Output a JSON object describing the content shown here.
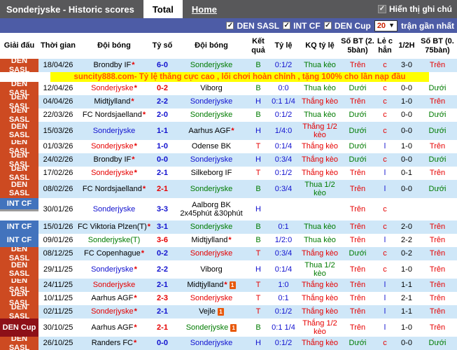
{
  "palette": {
    "bar_gray": "#58585a",
    "bar_blue": "#4d5ca6",
    "den_sasl": "#cd4a21",
    "int_cf": "#4273bd",
    "den_cup": "#8d1018",
    "row_alt": "#cfe7f8",
    "banner_bg": "#ffff00",
    "banner_text": "#ff5500",
    "win_red": "#e60000",
    "lose_green": "#007b00",
    "draw_blue": "#1111cf"
  },
  "tabs": {
    "title": "Sonderjyske - Historic scores",
    "total": "Total",
    "home": "Home",
    "note_toggle": "Hiển thị ghi chú"
  },
  "filters": {
    "leagues": [
      "DEN SASL",
      "INT CF",
      "DEN Cup"
    ],
    "count": "20",
    "suffix": "trận gần nhất"
  },
  "banner": {
    "text": "suncity888.com- Tỷ lệ thắng cực cao , lối chơi hoàn chỉnh , tặng 100% cho lần nạp đầu"
  },
  "columns": [
    "Giải đấu",
    "Thời gian",
    "Đội bóng",
    "Tỷ số",
    "Đội bóng",
    "Kết\nquả",
    "Tỷ lệ",
    "KQ tỷ lệ",
    "Số BT (2.\n5bàn)",
    "Lẻ c\nhẳn",
    "1/2H",
    "Số BT (0.\n75bàn)"
  ],
  "rows": [
    {
      "league": "DEN SASL",
      "lg": "sasl",
      "date": "18/04/26",
      "t1": "Brondby IF",
      "t1s": true,
      "t1c": "black",
      "score": "6-0",
      "scc": "blue",
      "t2": "Sonderjyske",
      "t2s": false,
      "t2c": "green",
      "t2i": false,
      "t2n": "",
      "res": "B",
      "resc": "green",
      "odds": "0:1/2",
      "kq": "Thua kèo",
      "kqc": "green",
      "o25": "Trên",
      "o25c": "red",
      "oe": "c",
      "oec": "red",
      "h12": "3-0",
      "o75": "Trên",
      "o75c": "red",
      "h": 1
    },
    {
      "league": "DEN SASL",
      "lg": "sasl",
      "date": "12/04/26",
      "t1": "Sonderjyske",
      "t1s": true,
      "t1c": "red",
      "score": "0-2",
      "scc": "red",
      "t2": "Viborg",
      "t2s": false,
      "t2c": "black",
      "t2i": false,
      "t2n": "",
      "res": "B",
      "resc": "green",
      "odds": "0:0",
      "kq": "Thua kèo",
      "kqc": "green",
      "o25": "Dưới",
      "o25c": "green",
      "oe": "c",
      "oec": "red",
      "h12": "0-0",
      "o75": "Dưới",
      "o75c": "green",
      "h": 1
    },
    {
      "league": "DEN SASL",
      "lg": "sasl",
      "date": "04/04/26",
      "t1": "Midtjylland",
      "t1s": true,
      "t1c": "black",
      "score": "2-2",
      "scc": "blue",
      "t2": "Sonderjyske",
      "t2s": false,
      "t2c": "blue",
      "t2i": false,
      "t2n": "",
      "res": "H",
      "resc": "blue",
      "odds": "0:1 1/4",
      "kq": "Thắng kèo",
      "kqc": "red",
      "o25": "Trên",
      "o25c": "red",
      "oe": "c",
      "oec": "red",
      "h12": "1-0",
      "o75": "Trên",
      "o75c": "red",
      "h": 1
    },
    {
      "league": "DEN SASL",
      "lg": "sasl",
      "date": "22/03/26",
      "t1": "FC Nordsjaelland",
      "t1s": true,
      "t1c": "black",
      "score": "2-0",
      "scc": "blue",
      "t2": "Sonderjyske",
      "t2s": false,
      "t2c": "green",
      "t2i": false,
      "t2n": "",
      "res": "B",
      "resc": "green",
      "odds": "0:1/2",
      "kq": "Thua kèo",
      "kqc": "green",
      "o25": "Dưới",
      "o25c": "green",
      "oe": "c",
      "oec": "red",
      "h12": "0-0",
      "o75": "Dưới",
      "o75c": "green",
      "h": 1
    },
    {
      "league": "DEN SASL",
      "lg": "sasl",
      "date": "15/03/26",
      "t1": "Sonderjyske",
      "t1s": false,
      "t1c": "blue",
      "score": "1-1",
      "scc": "blue",
      "t2": "Aarhus AGF",
      "t2s": true,
      "t2c": "black",
      "t2i": false,
      "t2n": "",
      "res": "H",
      "resc": "blue",
      "odds": "1/4:0",
      "kq": "Thắng 1/2 kèo",
      "kqc": "red",
      "o25": "Dưới",
      "o25c": "green",
      "oe": "c",
      "oec": "red",
      "h12": "0-0",
      "o75": "Dưới",
      "o75c": "green",
      "h": 2
    },
    {
      "league": "DEN SASL",
      "lg": "sasl",
      "date": "01/03/26",
      "t1": "Sonderjyske",
      "t1s": true,
      "t1c": "red",
      "score": "1-0",
      "scc": "blue",
      "t2": "Odense BK",
      "t2s": false,
      "t2c": "black",
      "t2i": false,
      "t2n": "",
      "res": "T",
      "resc": "red",
      "odds": "0:1/4",
      "kq": "Thắng kèo",
      "kqc": "red",
      "o25": "Dưới",
      "o25c": "green",
      "oe": "l",
      "oec": "blue",
      "h12": "1-0",
      "o75": "Trên",
      "o75c": "red",
      "h": 1
    },
    {
      "league": "DEN SASL",
      "lg": "sasl",
      "date": "24/02/26",
      "t1": "Brondby IF",
      "t1s": true,
      "t1c": "black",
      "score": "0-0",
      "scc": "blue",
      "t2": "Sonderjyske",
      "t2s": false,
      "t2c": "blue",
      "t2i": false,
      "t2n": "",
      "res": "H",
      "resc": "blue",
      "odds": "0:3/4",
      "kq": "Thắng kèo",
      "kqc": "red",
      "o25": "Dưới",
      "o25c": "green",
      "oe": "c",
      "oec": "red",
      "h12": "0-0",
      "o75": "Dưới",
      "o75c": "green",
      "h": 1
    },
    {
      "league": "DEN SASL",
      "lg": "sasl",
      "date": "17/02/26",
      "t1": "Sonderjyske",
      "t1s": true,
      "t1c": "red",
      "score": "2-1",
      "scc": "blue",
      "t2": "Silkeborg IF",
      "t2s": false,
      "t2c": "black",
      "t2i": false,
      "t2n": "",
      "res": "T",
      "resc": "red",
      "odds": "0:1/2",
      "kq": "Thắng kèo",
      "kqc": "red",
      "o25": "Trên",
      "o25c": "red",
      "oe": "l",
      "oec": "blue",
      "h12": "0-1",
      "o75": "Trên",
      "o75c": "red",
      "h": 1
    },
    {
      "league": "DEN SASL",
      "lg": "sasl",
      "date": "08/02/26",
      "t1": "FC Nordsjaelland",
      "t1s": true,
      "t1c": "black",
      "score": "2-1",
      "scc": "red",
      "t2": "Sonderjyske",
      "t2s": false,
      "t2c": "green",
      "t2i": false,
      "t2n": "",
      "res": "B",
      "resc": "green",
      "odds": "0:3/4",
      "kq": "Thua 1/2 kèo",
      "kqc": "green",
      "o25": "Trên",
      "o25c": "red",
      "oe": "l",
      "oec": "blue",
      "h12": "0-0",
      "o75": "Dưới",
      "o75c": "green",
      "h": 2
    },
    {
      "league": "INT CF",
      "lg": "intcf",
      "date": "30/01/26",
      "t1": "Sonderjyske",
      "t1s": false,
      "t1c": "blue",
      "score": "3-3",
      "scc": "blue",
      "t2": "Aalborg BK",
      "t2s": false,
      "t2c": "black",
      "t2i": false,
      "t2n": "2x45phút &30phút",
      "res": "H",
      "resc": "blue",
      "odds": "",
      "kq": "",
      "kqc": "black",
      "o25": "Trên",
      "o25c": "red",
      "oe": "c",
      "oec": "red",
      "h12": "",
      "o75": "",
      "o75c": "black",
      "h": 3
    },
    {
      "league": "INT CF",
      "lg": "intcf",
      "date": "15/01/26",
      "t1": "FC Viktoria Plzen(T)",
      "t1s": true,
      "t1c": "black",
      "score": "3-1",
      "scc": "blue",
      "t2": "Sonderjyske",
      "t2s": false,
      "t2c": "green",
      "t2i": false,
      "t2n": "",
      "res": "B",
      "resc": "green",
      "odds": "0:1",
      "kq": "Thua kèo",
      "kqc": "green",
      "o25": "Trên",
      "o25c": "red",
      "oe": "c",
      "oec": "red",
      "h12": "2-0",
      "o75": "Trên",
      "o75c": "red",
      "h": 1
    },
    {
      "league": "INT CF",
      "lg": "intcf",
      "date": "09/01/26",
      "t1": "Sonderjyske(T)",
      "t1s": false,
      "t1c": "green",
      "score": "3-6",
      "scc": "red",
      "t2": "Midtjylland",
      "t2s": true,
      "t2c": "black",
      "t2i": false,
      "t2n": "",
      "res": "B",
      "resc": "green",
      "odds": "1/2:0",
      "kq": "Thua kèo",
      "kqc": "green",
      "o25": "Trên",
      "o25c": "red",
      "oe": "l",
      "oec": "blue",
      "h12": "2-2",
      "o75": "Trên",
      "o75c": "red",
      "h": 1
    },
    {
      "league": "DEN SASL",
      "lg": "sasl",
      "date": "08/12/25",
      "t1": "FC Copenhague",
      "t1s": true,
      "t1c": "black",
      "score": "0-2",
      "scc": "blue",
      "t2": "Sonderjyske",
      "t2s": false,
      "t2c": "red",
      "t2i": false,
      "t2n": "",
      "res": "T",
      "resc": "red",
      "odds": "0:3/4",
      "kq": "Thắng kèo",
      "kqc": "red",
      "o25": "Dưới",
      "o25c": "green",
      "oe": "c",
      "oec": "red",
      "h12": "0-2",
      "o75": "Trên",
      "o75c": "red",
      "h": 1
    },
    {
      "league": "DEN SASL",
      "lg": "sasl",
      "date": "29/11/25",
      "t1": "Sonderjyske",
      "t1s": true,
      "t1c": "blue",
      "score": "2-2",
      "scc": "blue",
      "t2": "Viborg",
      "t2s": false,
      "t2c": "black",
      "t2i": false,
      "t2n": "",
      "res": "H",
      "resc": "blue",
      "odds": "0:1/4",
      "kq": "Thua 1/2 kèo",
      "kqc": "green",
      "o25": "Trên",
      "o25c": "red",
      "oe": "c",
      "oec": "red",
      "h12": "1-0",
      "o75": "Trên",
      "o75c": "red",
      "h": 2
    },
    {
      "league": "DEN SASL",
      "lg": "sasl",
      "date": "24/11/25",
      "t1": "Sonderjyske",
      "t1s": false,
      "t1c": "red",
      "score": "2-1",
      "scc": "blue",
      "t2": "Midtjylland",
      "t2s": true,
      "t2c": "black",
      "t2i": true,
      "t2n": "",
      "res": "T",
      "resc": "red",
      "odds": "1:0",
      "kq": "Thắng kèo",
      "kqc": "red",
      "o25": "Trên",
      "o25c": "red",
      "oe": "l",
      "oec": "blue",
      "h12": "1-1",
      "o75": "Trên",
      "o75c": "red",
      "h": 1
    },
    {
      "league": "DEN SASL",
      "lg": "sasl",
      "date": "10/11/25",
      "t1": "Aarhus AGF",
      "t1s": true,
      "t1c": "black",
      "score": "2-3",
      "scc": "red",
      "t2": "Sonderjyske",
      "t2s": false,
      "t2c": "red",
      "t2i": false,
      "t2n": "",
      "res": "T",
      "resc": "red",
      "odds": "0:1",
      "kq": "Thắng kèo",
      "kqc": "red",
      "o25": "Trên",
      "o25c": "red",
      "oe": "l",
      "oec": "blue",
      "h12": "2-1",
      "o75": "Trên",
      "o75c": "red",
      "h": 1
    },
    {
      "league": "DEN SASL",
      "lg": "sasl",
      "date": "02/11/25",
      "t1": "Sonderjyske",
      "t1s": true,
      "t1c": "red",
      "score": "2-1",
      "scc": "blue",
      "t2": "Vejle",
      "t2s": false,
      "t2c": "black",
      "t2i": true,
      "t2n": "",
      "res": "T",
      "resc": "red",
      "odds": "0:1/2",
      "kq": "Thắng kèo",
      "kqc": "red",
      "o25": "Trên",
      "o25c": "red",
      "oe": "l",
      "oec": "blue",
      "h12": "1-1",
      "o75": "Trên",
      "o75c": "red",
      "h": 1
    },
    {
      "league": "DEN Cup",
      "lg": "cup",
      "date": "30/10/25",
      "t1": "Aarhus AGF",
      "t1s": true,
      "t1c": "black",
      "score": "2-1",
      "scc": "red",
      "t2": "Sonderjyske",
      "t2s": false,
      "t2c": "green",
      "t2i": true,
      "t2n": "",
      "res": "B",
      "resc": "green",
      "odds": "0:1 1/4",
      "kq": "Thắng 1/2 kèo",
      "kqc": "red",
      "o25": "Trên",
      "o25c": "red",
      "oe": "l",
      "oec": "blue",
      "h12": "1-0",
      "o75": "Trên",
      "o75c": "red",
      "h": 2
    },
    {
      "league": "DEN SASL",
      "lg": "sasl",
      "date": "26/10/25",
      "t1": "Randers FC",
      "t1s": true,
      "t1c": "black",
      "score": "0-0",
      "scc": "blue",
      "t2": "Sonderjyske",
      "t2s": false,
      "t2c": "blue",
      "t2i": false,
      "t2n": "",
      "res": "H",
      "resc": "blue",
      "odds": "0:1/2",
      "kq": "Thắng kèo",
      "kqc": "red",
      "o25": "Dưới",
      "o25c": "green",
      "oe": "c",
      "oec": "red",
      "h12": "0-0",
      "o75": "Dưới",
      "o75c": "green",
      "h": 1
    }
  ]
}
